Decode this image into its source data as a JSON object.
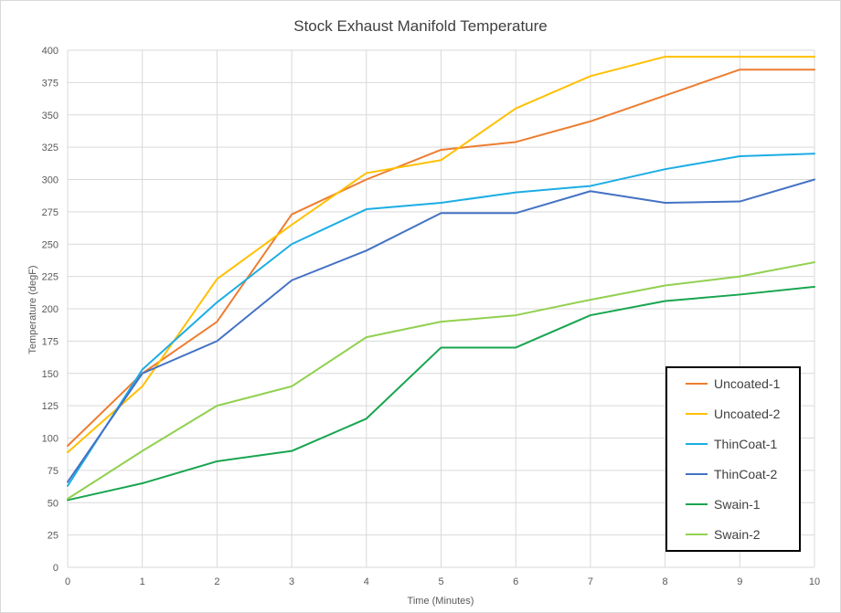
{
  "chart_data": {
    "type": "line",
    "title": "Stock Exhaust Manifold Temperature",
    "xlabel": "Time (Minutes)",
    "ylabel": "Temperature (degF)",
    "x": [
      0,
      1,
      2,
      3,
      4,
      5,
      6,
      7,
      8,
      9,
      10
    ],
    "xlim": [
      0,
      10
    ],
    "ylim": [
      0,
      400
    ],
    "yticks": [
      0,
      25,
      50,
      75,
      100,
      125,
      150,
      175,
      200,
      225,
      250,
      275,
      300,
      325,
      350,
      375,
      400
    ],
    "grid": true,
    "legend_position": "bottom-right",
    "series": [
      {
        "name": "Uncoated-1",
        "color": "#ED7D31",
        "values": [
          94,
          150,
          190,
          273,
          300,
          323,
          329,
          345,
          365,
          385,
          385
        ]
      },
      {
        "name": "Uncoated-2",
        "color": "#FFC000",
        "values": [
          89,
          140,
          223,
          265,
          305,
          315,
          355,
          380,
          395,
          395,
          395
        ]
      },
      {
        "name": "ThinCoat-1",
        "color": "#1CADE4",
        "values": [
          63,
          153,
          205,
          250,
          277,
          282,
          290,
          295,
          308,
          318,
          320
        ]
      },
      {
        "name": "ThinCoat-2",
        "color": "#4472C4",
        "values": [
          66,
          150,
          175,
          222,
          245,
          274,
          274,
          291,
          282,
          283,
          300
        ]
      },
      {
        "name": "Swain-1",
        "color": "#18A550",
        "values": [
          52,
          65,
          82,
          90,
          115,
          170,
          170,
          195,
          206,
          211,
          217
        ]
      },
      {
        "name": "Swain-2",
        "color": "#92D050",
        "values": [
          53,
          90,
          125,
          140,
          178,
          190,
          195,
          207,
          218,
          225,
          236
        ]
      }
    ]
  }
}
